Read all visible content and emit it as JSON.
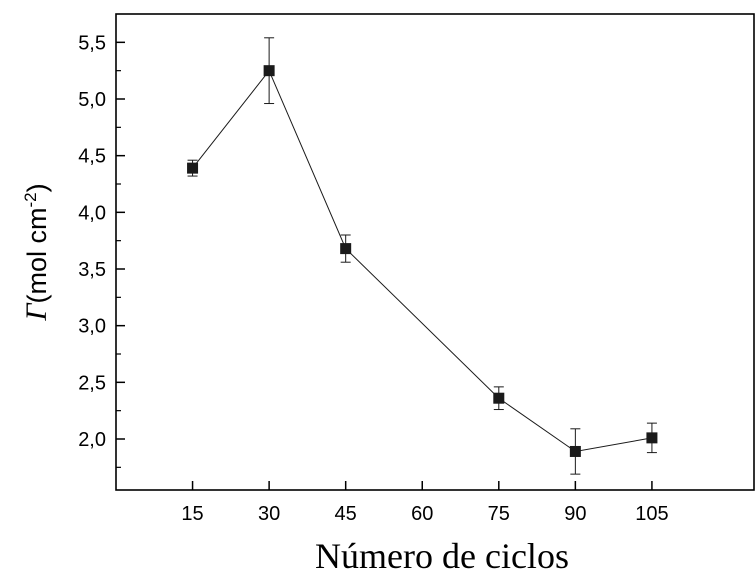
{
  "chart_data": {
    "type": "line",
    "title": "",
    "xlabel": "Número de ciclos",
    "ylabel": {
      "symbol": "Γ",
      "text": "(mol cm",
      "superscript": "-2",
      "close": ")"
    },
    "xlim": [
      0,
      125
    ],
    "ylim": [
      1.55,
      5.75
    ],
    "x_ticks": [
      15,
      30,
      45,
      60,
      75,
      90,
      105
    ],
    "x_tick_labels": [
      "15",
      "30",
      "45",
      "60",
      "75",
      "90",
      "105"
    ],
    "y_ticks": [
      2.0,
      2.5,
      3.0,
      3.5,
      4.0,
      4.5,
      5.0,
      5.5
    ],
    "y_tick_labels": [
      "2,0",
      "2,5",
      "3,0",
      "3,5",
      "4,0",
      "4,5",
      "5,0",
      "5,5"
    ],
    "grid": false,
    "legend": "none",
    "series": [
      {
        "x": [
          15,
          30,
          45,
          75,
          90,
          105
        ],
        "y": [
          4.39,
          5.25,
          3.68,
          2.36,
          1.89,
          2.01
        ],
        "error": [
          0.07,
          0.29,
          0.12,
          0.1,
          0.2,
          0.13
        ],
        "marker": "square",
        "color": "#1a1a1a"
      }
    ]
  }
}
